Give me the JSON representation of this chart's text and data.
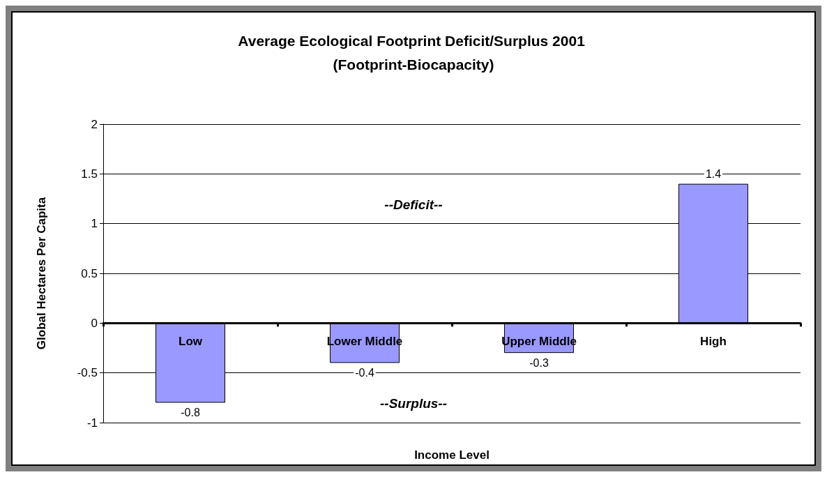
{
  "chart_data": {
    "type": "bar",
    "title": "Average Ecological Footprint Deficit/Surplus 2001 (Footprint-Biocapacity)",
    "xlabel": "Income Level",
    "ylabel": "Global Hectares Per Capita",
    "categories": [
      "Low",
      "Lower Middle",
      "Upper Middle",
      "High"
    ],
    "values": [
      -0.8,
      -0.4,
      -0.3,
      1.4
    ],
    "color": "#9999ff",
    "ylim": [
      -1,
      2
    ],
    "yticks": [
      -1,
      -0.5,
      0,
      0.5,
      1,
      1.5,
      2
    ],
    "grid": "y",
    "data_labels": true,
    "annotations": [
      "--Deficit--",
      "--Surplus--"
    ]
  }
}
